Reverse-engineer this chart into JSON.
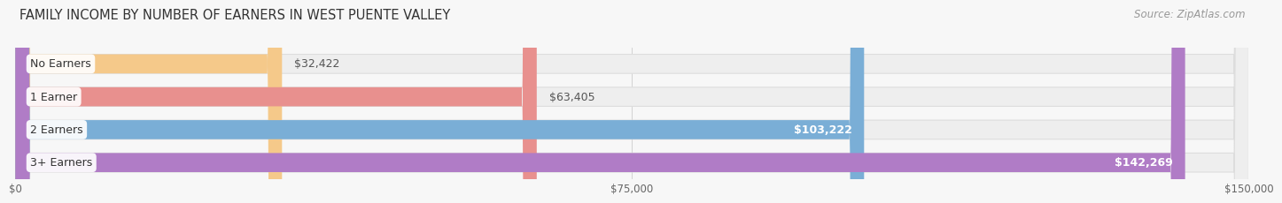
{
  "title": "FAMILY INCOME BY NUMBER OF EARNERS IN WEST PUENTE VALLEY",
  "source": "Source: ZipAtlas.com",
  "categories": [
    "No Earners",
    "1 Earner",
    "2 Earners",
    "3+ Earners"
  ],
  "values": [
    32422,
    63405,
    103222,
    142269
  ],
  "bar_colors": [
    "#f5c98a",
    "#e8908e",
    "#7aaed6",
    "#b07cc6"
  ],
  "value_labels": [
    "$32,422",
    "$63,405",
    "$103,222",
    "$142,269"
  ],
  "value_inside": [
    false,
    false,
    true,
    true
  ],
  "x_ticks": [
    0,
    75000,
    150000
  ],
  "x_tick_labels": [
    "$0",
    "$75,000",
    "$150,000"
  ],
  "xlim": [
    0,
    150000
  ],
  "fig_bg_color": "#f7f7f7",
  "bar_bg_color": "#eeeeee",
  "bar_bg_edge_color": "#dddddd",
  "title_fontsize": 10.5,
  "source_fontsize": 8.5,
  "label_fontsize": 9,
  "value_fontsize": 9
}
